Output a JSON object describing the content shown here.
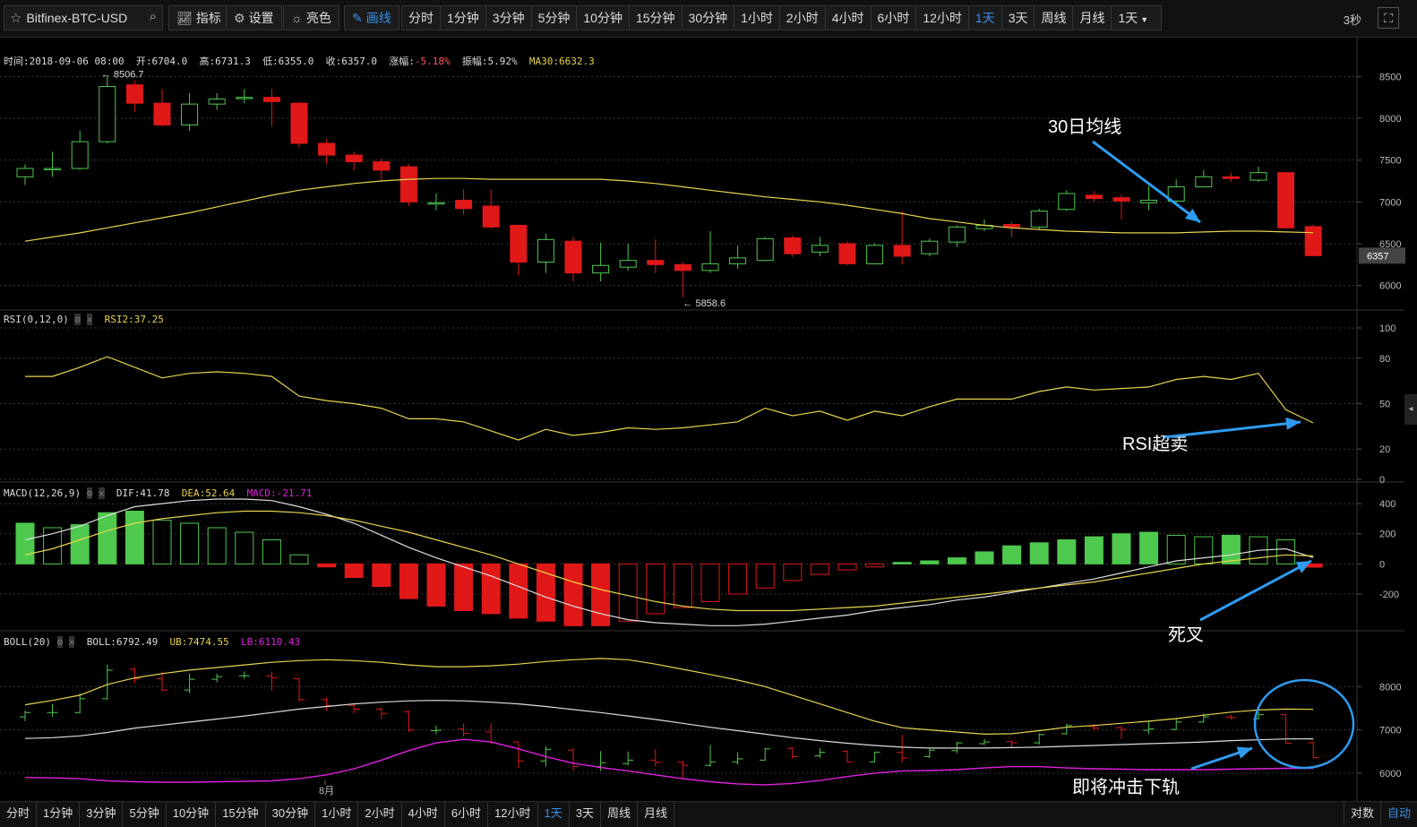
{
  "toolbar": {
    "symbol": "Bitfinex-BTC-USD",
    "buttons": [
      {
        "icon": "indicator-icon",
        "label": "指标"
      },
      {
        "icon": "gear-icon",
        "label": "设置"
      },
      {
        "icon": "sun-icon",
        "label": "亮色"
      },
      {
        "icon": "pencil-icon",
        "label": "画线"
      }
    ],
    "periods": [
      "分时",
      "1分钟",
      "3分钟",
      "5分钟",
      "10分钟",
      "15分钟",
      "30分钟",
      "1小时",
      "2小时",
      "4小时",
      "6小时",
      "12小时",
      "1天",
      "3天",
      "周线",
      "月线"
    ],
    "selected_period": "1天",
    "period_dropdown": "1天",
    "refresh_interval": "3秒"
  },
  "info": {
    "time_label": "时间:2018-09-06 08:00",
    "open_label": "开:6704.0",
    "high_label": "高:6731.3",
    "low_label": "低:6355.0",
    "close_label": "收:6357.0",
    "change_label": "涨幅:",
    "change_value": "-5.18%",
    "amplitude_label": "振幅:5.92%",
    "ma_label": "MA30:6632.3"
  },
  "rsi_info": {
    "name": "RSI(0,12,0)",
    "value_label": "RSI2:37.25"
  },
  "macd_info": {
    "name": "MACD(12,26,9)",
    "dif": "DIF:41.78",
    "dea": "DEA:52.64",
    "macd": "MACD:-21.71"
  },
  "boll_info": {
    "name": "BOLL(20)",
    "boll": "BOLL:6792.49",
    "ub": "UB:7474.55",
    "lb": "LB:6110.43"
  },
  "annotations": {
    "ma30": "30日均线",
    "rsi_oversold": "RSI超卖",
    "death_cross": "死叉",
    "lower_band": "即将冲击下轨"
  },
  "bottombar": {
    "periods": [
      "分时",
      "1分钟",
      "3分钟",
      "5分钟",
      "10分钟",
      "15分钟",
      "30分钟",
      "1小时",
      "2小时",
      "4小时",
      "6小时",
      "12小时",
      "1天",
      "3天",
      "周线",
      "月线"
    ],
    "selected": "1天",
    "scale_log": "对数",
    "scale_auto": "自动"
  },
  "colors": {
    "up": "#4ec94e",
    "down": "#e01818",
    "ma": "#e8d44d",
    "white_line": "#dddddd",
    "lb": "#e020e0",
    "arrow": "#2e9bf0"
  },
  "chart_data": [
    {
      "type": "candlestick",
      "title": "Bitfinex-BTC-USD",
      "yticks": [
        6000,
        6500,
        7000,
        7500,
        8000,
        8500
      ],
      "ylim": [
        5750,
        8750
      ],
      "last_price": "6357",
      "max_label": "8506.7",
      "min_label": "5858.6",
      "xtick_label": "8月",
      "candles": [
        [
          7300,
          7400,
          7200,
          7450
        ],
        [
          7400,
          7400,
          7300,
          7600
        ],
        [
          7400,
          7720,
          7380,
          7850
        ],
        [
          7720,
          8380,
          7700,
          8506.7
        ],
        [
          8400,
          8180,
          8080,
          8450
        ],
        [
          8180,
          7920,
          7900,
          8350
        ],
        [
          7920,
          8170,
          7850,
          8300
        ],
        [
          8170,
          8230,
          8100,
          8300
        ],
        [
          8250,
          8250,
          8180,
          8350
        ],
        [
          8250,
          8200,
          7900,
          8350
        ],
        [
          8180,
          7700,
          7650,
          8200
        ],
        [
          7700,
          7560,
          7450,
          7750
        ],
        [
          7560,
          7480,
          7380,
          7600
        ],
        [
          7480,
          7380,
          7250,
          7520
        ],
        [
          7420,
          7000,
          6950,
          7450
        ],
        [
          6980,
          6990,
          6900,
          7100
        ],
        [
          7020,
          6920,
          6850,
          7150
        ],
        [
          6950,
          6700,
          6680,
          7150
        ],
        [
          6720,
          6280,
          6120,
          6720
        ],
        [
          6280,
          6550,
          6150,
          6620
        ],
        [
          6530,
          6150,
          6050,
          6580
        ],
        [
          6150,
          6240,
          6050,
          6510
        ],
        [
          6220,
          6300,
          6180,
          6500
        ],
        [
          6300,
          6250,
          6150,
          6550
        ],
        [
          6250,
          6180,
          5858.6,
          6280
        ],
        [
          6180,
          6260,
          6150,
          6650
        ],
        [
          6260,
          6330,
          6200,
          6480
        ],
        [
          6300,
          6560,
          6290,
          6580
        ],
        [
          6570,
          6380,
          6340,
          6600
        ],
        [
          6400,
          6480,
          6350,
          6580
        ],
        [
          6500,
          6260,
          6240,
          6530
        ],
        [
          6260,
          6480,
          6250,
          6500
        ],
        [
          6480,
          6350,
          6250,
          6890
        ],
        [
          6380,
          6530,
          6350,
          6560
        ],
        [
          6520,
          6700,
          6460,
          6720
        ],
        [
          6680,
          6720,
          6650,
          6790
        ],
        [
          6730,
          6700,
          6580,
          6760
        ],
        [
          6700,
          6890,
          6660,
          6920
        ],
        [
          6910,
          7100,
          6890,
          7140
        ],
        [
          7080,
          7040,
          7000,
          7130
        ],
        [
          7050,
          7010,
          6790,
          7090
        ],
        [
          6990,
          7020,
          6900,
          7190
        ],
        [
          7010,
          7180,
          6990,
          7270
        ],
        [
          7180,
          7300,
          7170,
          7380
        ],
        [
          7300,
          7280,
          7240,
          7350
        ],
        [
          7260,
          7350,
          7240,
          7420
        ],
        [
          7350,
          6690,
          6680,
          7360
        ],
        [
          6704,
          6357,
          6355,
          6731.3
        ]
      ],
      "ma30": [
        6530,
        6580,
        6630,
        6690,
        6750,
        6810,
        6870,
        6940,
        7010,
        7080,
        7140,
        7180,
        7220,
        7250,
        7270,
        7280,
        7280,
        7270,
        7270,
        7270,
        7270,
        7270,
        7250,
        7220,
        7180,
        7140,
        7100,
        7060,
        7030,
        7000,
        6960,
        6910,
        6860,
        6800,
        6760,
        6720,
        6690,
        6670,
        6650,
        6640,
        6630,
        6630,
        6630,
        6640,
        6650,
        6650,
        6640,
        6632.3
      ]
    },
    {
      "type": "line",
      "title": "RSI(0,12,0)",
      "yticks": [
        0,
        20,
        50,
        80,
        100
      ],
      "ylim": [
        0,
        100
      ],
      "series": [
        {
          "name": "RSI2",
          "values": [
            68,
            68,
            74,
            81,
            74,
            67,
            70,
            71,
            70,
            68,
            55,
            52,
            50,
            47,
            40,
            40,
            38,
            32,
            26,
            33,
            29,
            31,
            34,
            33,
            34,
            36,
            38,
            47,
            42,
            45,
            39,
            45,
            42,
            48,
            53,
            53,
            53,
            58,
            61,
            59,
            60,
            61,
            66,
            68,
            66,
            70,
            46,
            37.25
          ]
        }
      ]
    },
    {
      "type": "bar",
      "title": "MACD(12,26,9)",
      "yticks": [
        -200,
        0,
        200,
        400
      ],
      "ylim": [
        -420,
        460
      ],
      "macd": [
        270,
        240,
        260,
        340,
        350,
        290,
        270,
        240,
        210,
        160,
        60,
        -20,
        -90,
        -150,
        -230,
        -280,
        -310,
        -330,
        -360,
        -380,
        -410,
        -410,
        -380,
        -330,
        -290,
        -250,
        -200,
        -160,
        -110,
        -70,
        -40,
        -20,
        10,
        20,
        40,
        80,
        120,
        140,
        160,
        180,
        200,
        210,
        190,
        180,
        190,
        180,
        160,
        -21.71
      ],
      "dif": [
        160,
        200,
        250,
        320,
        380,
        400,
        420,
        430,
        430,
        420,
        380,
        330,
        270,
        190,
        110,
        40,
        -20,
        -80,
        -150,
        -220,
        -280,
        -330,
        -370,
        -390,
        -400,
        -410,
        -410,
        -400,
        -380,
        -360,
        -340,
        -310,
        -290,
        -270,
        -240,
        -220,
        -190,
        -160,
        -130,
        -100,
        -60,
        -20,
        20,
        40,
        60,
        90,
        100,
        41.78
      ],
      "dea": [
        60,
        100,
        160,
        220,
        270,
        300,
        320,
        340,
        350,
        350,
        340,
        320,
        290,
        250,
        210,
        160,
        110,
        60,
        0,
        -60,
        -120,
        -170,
        -210,
        -250,
        -280,
        -300,
        -310,
        -310,
        -310,
        -300,
        -290,
        -280,
        -260,
        -240,
        -220,
        -200,
        -180,
        -160,
        -140,
        -120,
        -90,
        -60,
        -30,
        0,
        20,
        40,
        60,
        52.64
      ]
    },
    {
      "type": "line",
      "title": "BOLL(20)",
      "yticks": [
        6000,
        7000,
        8000
      ],
      "ylim": [
        5500,
        9000
      ],
      "ub": [
        7580,
        7680,
        7800,
        8050,
        8200,
        8300,
        8380,
        8440,
        8500,
        8560,
        8600,
        8620,
        8600,
        8560,
        8500,
        8460,
        8460,
        8480,
        8520,
        8580,
        8620,
        8650,
        8620,
        8520,
        8400,
        8280,
        8150,
        8000,
        7800,
        7600,
        7400,
        7200,
        7050,
        7000,
        6950,
        6900,
        6910,
        6980,
        7060,
        7100,
        7150,
        7200,
        7260,
        7340,
        7410,
        7460,
        7480,
        7474.55
      ],
      "boll": [
        6800,
        6820,
        6860,
        6940,
        7040,
        7110,
        7180,
        7250,
        7320,
        7400,
        7480,
        7540,
        7600,
        7640,
        7670,
        7680,
        7670,
        7640,
        7600,
        7540,
        7470,
        7400,
        7320,
        7240,
        7150,
        7060,
        6980,
        6900,
        6820,
        6750,
        6690,
        6640,
        6600,
        6580,
        6580,
        6580,
        6590,
        6600,
        6620,
        6640,
        6660,
        6680,
        6700,
        6720,
        6750,
        6770,
        6790,
        6792.49
      ],
      "lb": [
        5900,
        5890,
        5870,
        5820,
        5800,
        5790,
        5790,
        5800,
        5810,
        5820,
        5870,
        5960,
        6100,
        6300,
        6520,
        6700,
        6780,
        6720,
        6560,
        6380,
        6230,
        6130,
        6050,
        5960,
        5870,
        5800,
        5750,
        5730,
        5760,
        5830,
        5920,
        6000,
        6050,
        6060,
        6080,
        6120,
        6150,
        6150,
        6120,
        6100,
        6090,
        6080,
        6080,
        6080,
        6090,
        6100,
        6110,
        6110.43
      ]
    }
  ]
}
